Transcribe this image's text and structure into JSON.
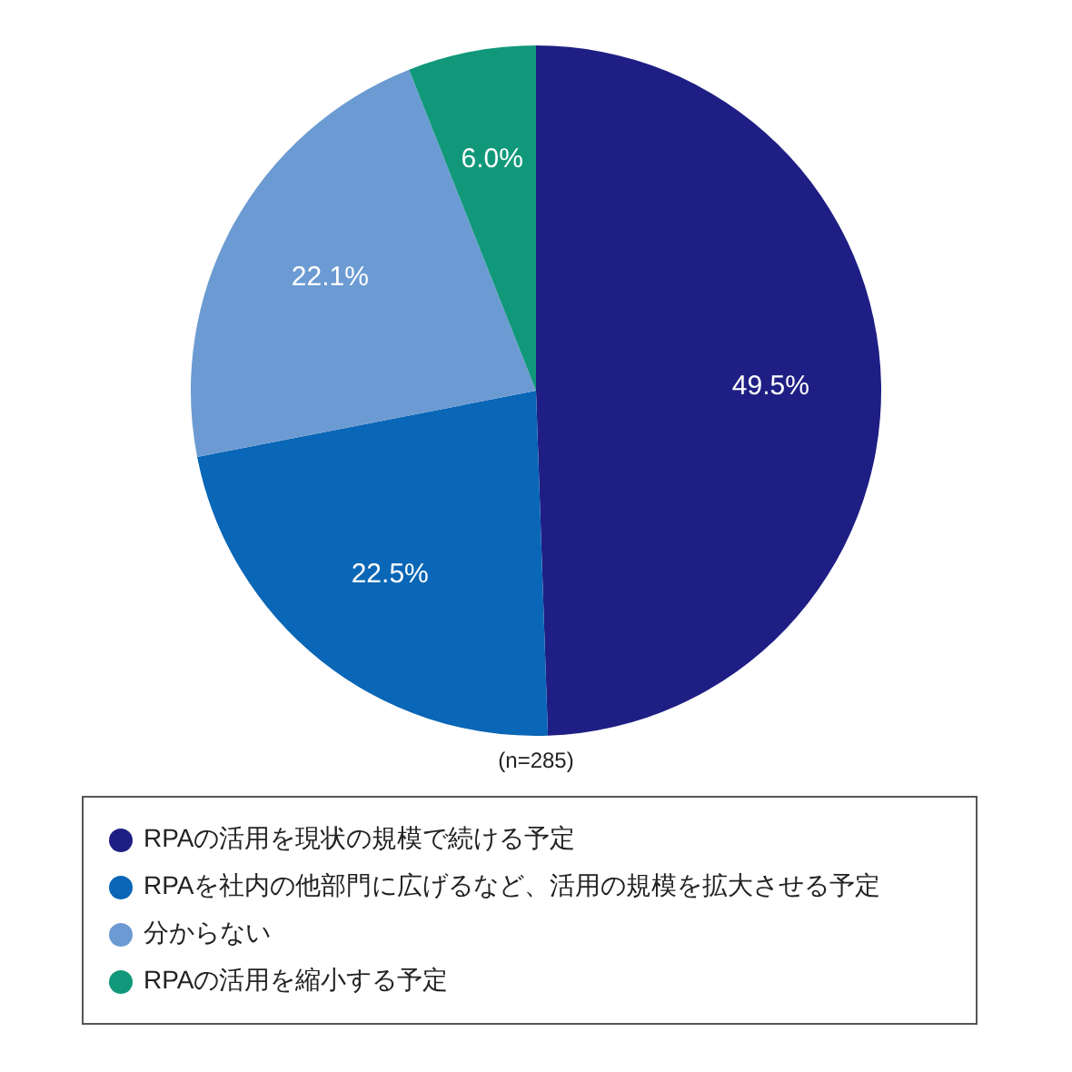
{
  "chart_data": {
    "type": "pie",
    "categories": [
      "RPAの活用を現状の規模で続ける予定",
      "RPAを社内の他部門に広げるなど、活用の規模を拡大させる予定",
      "分からない",
      "RPAの活用を縮小する予定"
    ],
    "values": [
      49.5,
      22.5,
      22.1,
      6.0
    ],
    "colors": [
      "#1e1e84",
      "#0a66b6",
      "#6c9bd3",
      "#11987a"
    ],
    "value_labels": [
      "49.5%",
      "22.5%",
      "22.1%",
      "6.0%"
    ],
    "legend": "bottom",
    "annotations": [
      "(n=285)"
    ]
  }
}
